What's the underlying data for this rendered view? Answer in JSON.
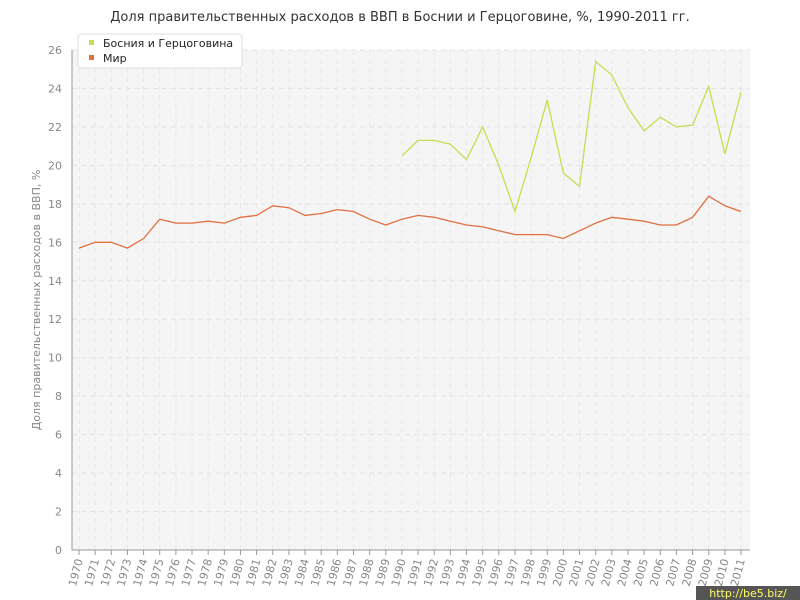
{
  "chart_data": {
    "type": "line",
    "title": "Доля правительственных расходов в ВВП в Боснии и Герцоговине, %, 1990-2011 гг.",
    "ylabel": "Доля правительственных расходов в ВВП, %",
    "xlabel": "",
    "ylim": [
      0,
      26
    ],
    "yticks": [
      "0",
      "2",
      "4",
      "6",
      "8",
      "10",
      "12",
      "14",
      "16",
      "18",
      "20",
      "22",
      "24",
      "26"
    ],
    "categories": [
      "1970",
      "1971",
      "1972",
      "1973",
      "1974",
      "1975",
      "1976",
      "1977",
      "1978",
      "1979",
      "1980",
      "1981",
      "1982",
      "1983",
      "1984",
      "1985",
      "1986",
      "1987",
      "1988",
      "1989",
      "1990",
      "1991",
      "1992",
      "1993",
      "1994",
      "1995",
      "1996",
      "1997",
      "1998",
      "1999",
      "2000",
      "2001",
      "2002",
      "2003",
      "2004",
      "2005",
      "2006",
      "2007",
      "2008",
      "2009",
      "2010",
      "2011"
    ],
    "grid": true,
    "legend_position": "top-left",
    "series": [
      {
        "name": "Босния и Герцоговина",
        "color": "#c8dc50",
        "values": [
          null,
          null,
          null,
          null,
          null,
          null,
          null,
          null,
          null,
          null,
          null,
          null,
          null,
          null,
          null,
          null,
          null,
          null,
          null,
          null,
          20.5,
          21.3,
          21.3,
          21.1,
          20.3,
          22.0,
          20.0,
          17.6,
          20.4,
          23.4,
          19.6,
          18.9,
          25.4,
          24.7,
          23.0,
          21.8,
          22.5,
          22.0,
          22.1,
          24.1,
          20.6,
          23.8
        ]
      },
      {
        "name": "Мир",
        "color": "#e07040",
        "values": [
          15.7,
          16.0,
          16.0,
          15.7,
          16.2,
          17.2,
          17.0,
          17.0,
          17.1,
          17.0,
          17.3,
          17.4,
          17.9,
          17.8,
          17.4,
          17.5,
          17.7,
          17.6,
          17.2,
          16.9,
          17.2,
          17.4,
          17.3,
          17.1,
          16.9,
          16.8,
          16.6,
          16.4,
          16.4,
          16.4,
          16.2,
          16.6,
          17.0,
          17.3,
          17.2,
          17.1,
          16.9,
          16.9,
          17.3,
          18.4,
          17.9,
          17.6
        ]
      }
    ]
  },
  "watermark": {
    "text": "http://be5.biz/",
    "bg_color": "#555555"
  }
}
